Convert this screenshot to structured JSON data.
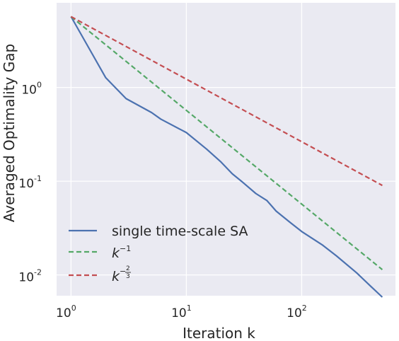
{
  "chart_data": {
    "type": "line",
    "title": "",
    "xlabel": "Iteration k",
    "ylabel": "Averaged Optimality Gap",
    "xscale": "log",
    "yscale": "log",
    "xlim": [
      0.75,
      650
    ],
    "ylim": [
      0.006,
      8
    ],
    "x_ticks": [
      {
        "base": "10",
        "exp": "0",
        "value": 1
      },
      {
        "base": "10",
        "exp": "1",
        "value": 10
      },
      {
        "base": "10",
        "exp": "2",
        "value": 100
      }
    ],
    "y_ticks": [
      {
        "base": "10",
        "exp": "0",
        "value": 1
      },
      {
        "base": "10",
        "exp": "-1",
        "value": 0.1
      },
      {
        "base": "10",
        "exp": "-2",
        "value": 0.01
      }
    ],
    "grid": true,
    "legend_position": "lower-left",
    "background": "#eaeaf2",
    "series": [
      {
        "name": "single time-scale SA",
        "color": "#4c72b0",
        "style": "solid",
        "x": [
          1,
          2,
          3,
          5,
          6,
          10,
          15,
          20,
          25,
          30,
          40,
          50,
          60,
          80,
          100,
          150,
          200,
          300,
          400,
          500
        ],
        "y": [
          5.7,
          1.27,
          0.76,
          0.54,
          0.46,
          0.33,
          0.22,
          0.16,
          0.12,
          0.1,
          0.074,
          0.062,
          0.048,
          0.036,
          0.029,
          0.021,
          0.016,
          0.0105,
          0.0075,
          0.0058
        ]
      },
      {
        "name_base": "k",
        "name_exp": "−1",
        "color": "#55a868",
        "style": "dashed",
        "x": [
          1,
          500
        ],
        "y": [
          5.7,
          0.0114
        ]
      },
      {
        "name_base": "k",
        "name_exp_num": "2",
        "name_exp_den": "3",
        "color": "#c44e52",
        "style": "dashed",
        "x": [
          1,
          500
        ],
        "y": [
          5.7,
          0.0902
        ]
      }
    ]
  }
}
